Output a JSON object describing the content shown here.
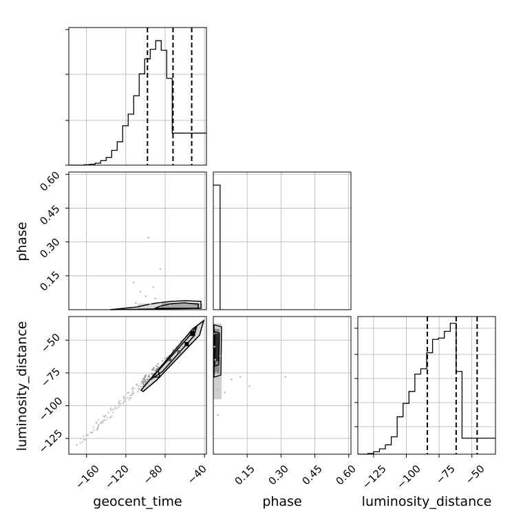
{
  "chart_data": {
    "type": "corner",
    "parameters": [
      "geocent_time",
      "phase",
      "luminosity_distance"
    ],
    "axis_labels": {
      "geocent_time": "geocent_time",
      "phase": "phase",
      "luminosity_distance": "luminosity_distance"
    },
    "ranges": {
      "geocent_time": [
        -178,
        -38
      ],
      "phase": [
        0.0,
        0.61
      ],
      "luminosity_distance": [
        -137,
        -32
      ]
    },
    "ticks": {
      "geocent_time": [
        -160,
        -120,
        -80,
        -40
      ],
      "phase_x": [
        0.15,
        0.3,
        0.45,
        0.6
      ],
      "phase_y": [
        0.15,
        0.3,
        0.45,
        0.6
      ],
      "luminosity_distance_x": [
        -125,
        -100,
        -75,
        -50
      ],
      "luminosity_distance_y": [
        -50,
        -75,
        -100,
        -125
      ]
    },
    "tick_labels": {
      "geocent_time": [
        "−160",
        "−120",
        "−80",
        "−40"
      ],
      "phase_x": [
        "0.15",
        "0.30",
        "0.45",
        "0.60"
      ],
      "phase_y": [
        "0.15",
        "0.30",
        "0.45",
        "0.60"
      ],
      "luminosity_distance_x": [
        "−125",
        "−100",
        "−75",
        "−50"
      ],
      "luminosity_distance_y": [
        "−50",
        "−75",
        "−100",
        "−125"
      ]
    },
    "histograms": {
      "geocent_time": {
        "edges_start": -168,
        "bin_width": 5.6,
        "counts": [
          0.0,
          0.003,
          0.007,
          0.015,
          0.034,
          0.058,
          0.111,
          0.175,
          0.295,
          0.382,
          0.52,
          0.684,
          0.796,
          0.868,
          0.932,
          0.86,
          0.65,
          0.24
        ],
        "quantiles": [
          -98,
          -72,
          -53
        ]
      },
      "phase": {
        "edges_start": 0.0,
        "bin_width": 0.03,
        "counts": [
          1.0
        ],
        "quantiles": []
      },
      "luminosity_distance": {
        "edges_start": -134,
        "bin_width": 4.5,
        "counts": [
          0.0,
          0.005,
          0.018,
          0.04,
          0.07,
          0.13,
          0.28,
          0.38,
          0.47,
          0.6,
          0.64,
          0.76,
          0.86,
          0.87,
          0.92,
          0.98,
          0.62,
          0.12
        ],
        "quantiles": [
          -84,
          -62,
          -46
        ]
      }
    },
    "scatter": {
      "geocent_time_phase": [
        [
          -95,
          0.025
        ],
        [
          -110,
          0.03
        ],
        [
          -100,
          0.06
        ],
        [
          -105,
          0.08
        ],
        [
          -92,
          0.1
        ],
        [
          -112,
          0.12
        ],
        [
          -85,
          0.18
        ],
        [
          -97,
          0.32
        ],
        [
          -90,
          0.05
        ],
        [
          -75,
          0.02
        ]
      ],
      "phase_luminosity_distance": [
        [
          0.003,
          -45
        ],
        [
          0.005,
          -55
        ],
        [
          0.008,
          -65
        ],
        [
          0.012,
          -75
        ],
        [
          0.018,
          -88
        ],
        [
          0.03,
          -62
        ],
        [
          0.05,
          -90
        ],
        [
          0.08,
          -80
        ],
        [
          0.12,
          -78
        ],
        [
          0.16,
          -85
        ],
        [
          0.32,
          -78
        ],
        [
          0.02,
          -107
        ]
      ]
    },
    "contours": {
      "geocent_time_luminosity_distance": {
        "ridge": [
          [
            -170,
            -130
          ],
          [
            -40,
            -38
          ]
        ],
        "density_peaks": [
          [
            -52,
            -45
          ],
          [
            -58,
            -53
          ],
          [
            -66,
            -59
          ],
          [
            -75,
            -65
          ],
          [
            -88,
            -73
          ]
        ]
      }
    },
    "grid": true
  }
}
